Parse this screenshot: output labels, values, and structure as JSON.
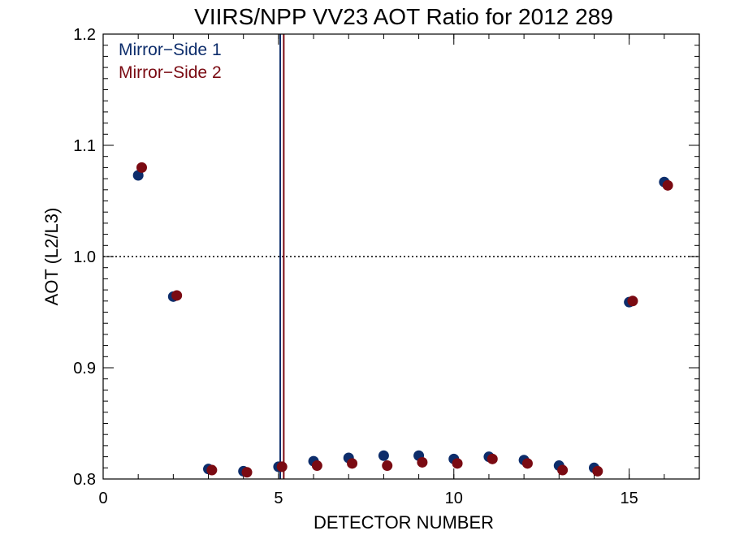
{
  "chart_data": {
    "type": "scatter",
    "title": "VIIRS/NPP VV23 AOT Ratio for 2012 289",
    "xlabel": "DETECTOR NUMBER",
    "ylabel": "AOT (L2/L3)",
    "xlim": [
      0,
      17
    ],
    "ylim": [
      0.8,
      1.2
    ],
    "x_ticks": [
      {
        "value": 0,
        "label": "0"
      },
      {
        "value": 5,
        "label": "5"
      },
      {
        "value": 10,
        "label": "10"
      },
      {
        "value": 15,
        "label": "15"
      }
    ],
    "y_ticks": [
      {
        "value": 0.8,
        "label": "0.8"
      },
      {
        "value": 0.9,
        "label": "0.9"
      },
      {
        "value": 1.0,
        "label": "1.0"
      },
      {
        "value": 1.1,
        "label": "1.1"
      },
      {
        "value": 1.2,
        "label": "1.2"
      }
    ],
    "reference_line": {
      "y": 1.0,
      "style": "dotted",
      "color": "#000000"
    },
    "vertical_lines": [
      {
        "x": 5.05,
        "color": "#0d2d6b"
      },
      {
        "x": 5.15,
        "color": "#7a0a12"
      }
    ],
    "legend_position": "top-left",
    "series": [
      {
        "name": "Mirror−Side 1",
        "color": "#0d2d6b",
        "x": [
          1,
          2,
          3,
          4,
          5,
          6,
          7,
          8,
          9,
          10,
          11,
          12,
          13,
          14,
          15,
          16
        ],
        "y": [
          1.073,
          0.964,
          0.809,
          0.807,
          0.811,
          0.816,
          0.819,
          0.821,
          0.821,
          0.818,
          0.82,
          0.817,
          0.812,
          0.81,
          0.959,
          1.067
        ]
      },
      {
        "name": "Mirror−Side 2",
        "color": "#7a0a12",
        "x": [
          1.1,
          2.1,
          3.1,
          4.1,
          5.1,
          6.1,
          7.1,
          8.1,
          9.1,
          10.1,
          11.1,
          12.1,
          13.1,
          14.1,
          15.1,
          16.1
        ],
        "y": [
          1.08,
          0.965,
          0.808,
          0.806,
          0.811,
          0.812,
          0.814,
          0.812,
          0.815,
          0.814,
          0.818,
          0.814,
          0.808,
          0.807,
          0.96,
          1.064
        ]
      }
    ]
  }
}
